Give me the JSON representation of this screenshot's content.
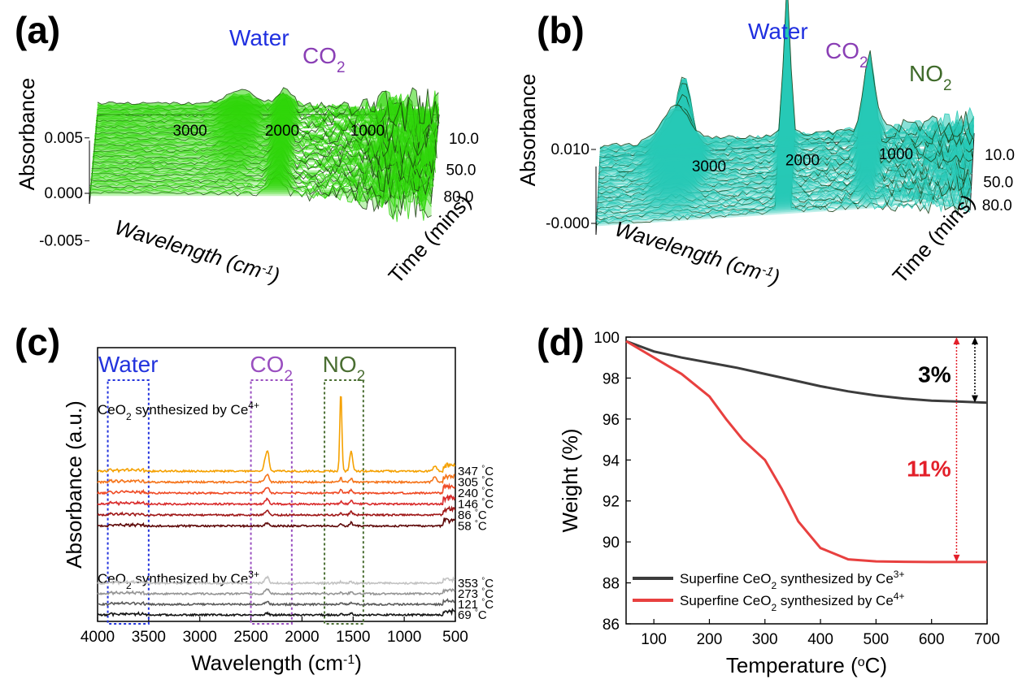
{
  "panels": {
    "a": {
      "label": "(a)"
    },
    "b": {
      "label": "(b)"
    },
    "c": {
      "label": "(c)"
    },
    "d": {
      "label": "(d)"
    }
  },
  "chart_data": [
    {
      "id": "a",
      "type": "surface3d",
      "title": "",
      "xlabel": "Wavelength (cm",
      "xlabel_sup": "-1",
      "xlabel_end": ")",
      "ylabel": "Time (mins)",
      "zlabel": "Absorbance",
      "x_ticks": [
        "3000",
        "2000",
        "1000"
      ],
      "y_ticks": [
        "10.0",
        "50.0",
        "80.0"
      ],
      "z_ticks": [
        "0.005",
        "0.000",
        "-0.005"
      ],
      "surface_color": "#2fd60a",
      "annotations": [
        {
          "text": "Water",
          "color": "#1f2fe0"
        },
        {
          "text": "CO",
          "sub": "2",
          "color": "#8a3fb5"
        }
      ]
    },
    {
      "id": "b",
      "type": "surface3d",
      "title": "",
      "xlabel": "Wavelength (cm",
      "xlabel_sup": "-1",
      "xlabel_end": ")",
      "ylabel": "Time (mins)",
      "zlabel": "Absorbance",
      "x_ticks": [
        "3000",
        "2000",
        "1000"
      ],
      "y_ticks": [
        "10.0",
        "50.0",
        "80.0"
      ],
      "z_ticks": [
        "0.010",
        "-0.000"
      ],
      "surface_color": "#27c9b6",
      "annotations": [
        {
          "text": "Water",
          "color": "#1f2fe0"
        },
        {
          "text": "CO",
          "sub": "2",
          "color": "#8a3fb5"
        },
        {
          "text": "NO",
          "sub": "2",
          "color": "#3f6a2a"
        }
      ]
    },
    {
      "id": "c",
      "type": "line",
      "xlabel": "Wavelength (cm",
      "xlabel_sup": "-1",
      "xlabel_end": ")",
      "ylabel": "Absorbance (a.u.)",
      "xlim": [
        4000,
        500
      ],
      "x_ticks": [
        4000,
        3500,
        3000,
        2500,
        2000,
        1500,
        1000,
        500
      ],
      "regions": [
        {
          "label": "Water",
          "sub": "",
          "from": 3900,
          "to": 3500,
          "color": "#2233dd"
        },
        {
          "label": "CO",
          "sub": "2",
          "from": 2500,
          "to": 2100,
          "color": "#9a4fc0"
        },
        {
          "label": "NO",
          "sub": "2",
          "from": 1780,
          "to": 1400,
          "color": "#4a6e32"
        }
      ],
      "group_labels": [
        {
          "pre": "CeO",
          "sub": "2",
          "mid": " synthesized by Ce",
          "sup": "4+"
        },
        {
          "pre": "CeO",
          "sub": "2",
          "mid": " synthesized by Ce",
          "sup": "3+"
        }
      ],
      "temp_unit": "°C",
      "series_ce4": [
        {
          "temp": "347",
          "color": "#f5a100",
          "offset": 0.0,
          "big_no2": true
        },
        {
          "temp": "305",
          "color": "#f5741a",
          "offset": 1.0,
          "big_no2": false
        },
        {
          "temp": "240",
          "color": "#ef4a24",
          "offset": 2.0,
          "big_no2": false
        },
        {
          "temp": "146",
          "color": "#d92b2b",
          "offset": 3.0,
          "big_no2": false
        },
        {
          "temp": "86",
          "color": "#a01818",
          "offset": 4.0,
          "big_no2": false
        },
        {
          "temp": "58",
          "color": "#5e0909",
          "offset": 5.0,
          "big_no2": false
        }
      ],
      "series_ce3": [
        {
          "temp": "353",
          "color": "#c2c2c2",
          "offset": 0.0
        },
        {
          "temp": "273",
          "color": "#959595",
          "offset": 1.0
        },
        {
          "temp": "121",
          "color": "#5a5a5a",
          "offset": 2.0
        },
        {
          "temp": "69",
          "color": "#141414",
          "offset": 3.0
        }
      ]
    },
    {
      "id": "d",
      "type": "line",
      "xlabel": "Temperature (",
      "xlabel_sup": "o",
      "xlabel_end": "C)",
      "ylabel": "Weight (%)",
      "xlim": [
        50,
        700
      ],
      "ylim": [
        86,
        100
      ],
      "x_ticks": [
        100,
        200,
        300,
        400,
        500,
        600,
        700
      ],
      "y_ticks": [
        86,
        88,
        90,
        92,
        94,
        96,
        98,
        100
      ],
      "series": [
        {
          "name_pre": "Superfine CeO",
          "name_sub": "2",
          "name_mid": " synthesized by Ce",
          "name_sup": "3+",
          "color": "#3c3c3c",
          "x": [
            50,
            100,
            150,
            200,
            250,
            300,
            350,
            400,
            450,
            500,
            550,
            600,
            650,
            700
          ],
          "y": [
            99.8,
            99.3,
            99.0,
            98.75,
            98.5,
            98.2,
            97.9,
            97.6,
            97.35,
            97.15,
            97.0,
            96.9,
            96.85,
            96.8
          ]
        },
        {
          "name_pre": "Superfine CeO",
          "name_sub": "2",
          "name_mid": " synthesized by Ce",
          "name_sup": "4+",
          "color": "#e8403f",
          "x": [
            50,
            100,
            150,
            200,
            230,
            260,
            300,
            330,
            360,
            400,
            450,
            500,
            550,
            600,
            650,
            700
          ],
          "y": [
            99.8,
            99.0,
            98.2,
            97.1,
            96.0,
            95.0,
            94.0,
            92.6,
            91.0,
            89.7,
            89.15,
            89.05,
            89.03,
            89.02,
            89.02,
            89.02
          ]
        }
      ],
      "annotations": [
        {
          "text": "3%",
          "color": "#000000"
        },
        {
          "text": "11%",
          "color": "#e3202a"
        }
      ]
    }
  ]
}
